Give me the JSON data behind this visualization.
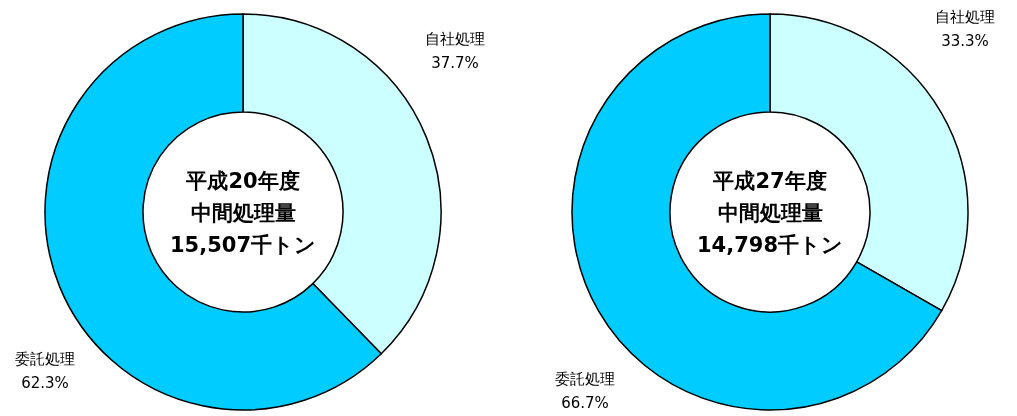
{
  "chart_data": [
    {
      "type": "donut",
      "title": "平成20年度",
      "subtitle": "中間処理量",
      "annotations": [
        "15,507千トン"
      ],
      "categories": [
        "自社処理",
        "委託処理"
      ],
      "values": [
        37.7,
        62.3
      ],
      "colors": [
        "#ccffff",
        "#00ccff"
      ],
      "value_labels": [
        "37.7%",
        "62.3%"
      ]
    },
    {
      "type": "donut",
      "title": "平成27年度",
      "subtitle": "中間処理量",
      "annotations": [
        "14,798千トン"
      ],
      "categories": [
        "自社処理",
        "委託処理"
      ],
      "values": [
        33.3,
        66.7
      ],
      "colors": [
        "#ccffff",
        "#00ccff"
      ],
      "value_labels": [
        "33.3%",
        "66.7%"
      ]
    }
  ]
}
